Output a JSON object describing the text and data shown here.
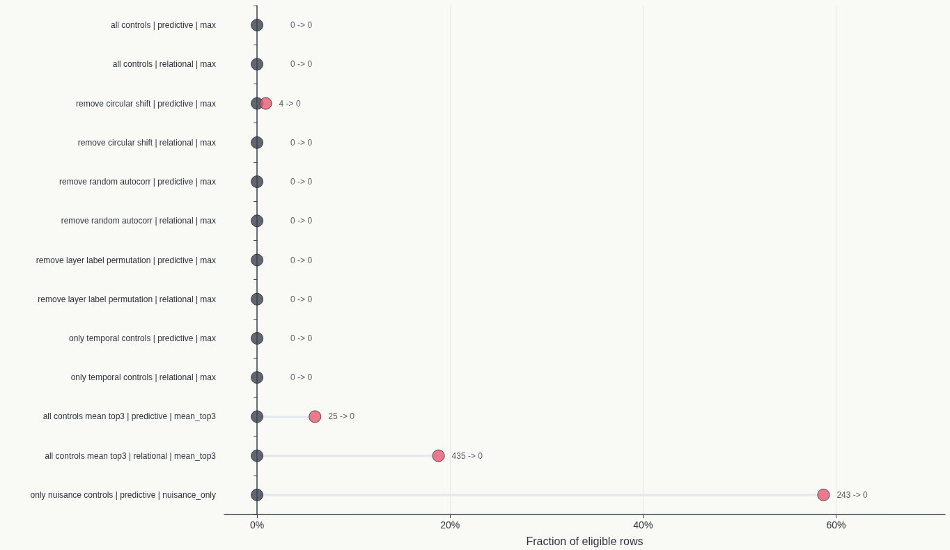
{
  "chart_data": {
    "type": "lollipop",
    "orientation": "horizontal",
    "xlabel": "Fraction of eligible rows",
    "categories": [
      "all controls | predictive | max",
      "all controls | relational | max",
      "remove circular shift | predictive | max",
      "remove circular shift | relational | max",
      "remove random autocorr | predictive | max",
      "remove random autocorr | relational | max",
      "remove layer label permutation | predictive | max",
      "remove layer label permutation | relational | max",
      "only temporal controls | predictive | max",
      "only temporal controls | relational | max",
      "all controls mean top3 | predictive | mean_top3",
      "all controls mean top3 | relational | mean_top3",
      "only nuisance controls | predictive | nuisance_only"
    ],
    "series": [
      {
        "color": "#e85a72",
        "values": [
          null,
          null,
          0.9,
          null,
          null,
          null,
          null,
          null,
          null,
          null,
          6.0,
          18.8,
          58.7
        ],
        "value_labels": [
          "0 -> 0",
          "0 -> 0",
          "4 -> 0",
          "0 -> 0",
          "0 -> 0",
          "0 -> 0",
          "0 -> 0",
          "0 -> 0",
          "0 -> 0",
          "0 -> 0",
          "25 -> 0",
          "435 -> 0",
          "243 -> 0"
        ]
      },
      {
        "type": "scatter",
        "color": "#3b414d",
        "values": [
          0,
          0,
          0,
          0,
          0,
          0,
          0,
          0,
          0,
          0,
          0,
          0,
          0
        ]
      }
    ],
    "xlim": [
      -3.4,
      71.3
    ],
    "xticks": [
      {
        "value": 0,
        "label": "0%"
      },
      {
        "value": 20,
        "label": "20%"
      },
      {
        "value": 40,
        "label": "40%"
      },
      {
        "value": 60,
        "label": "60%"
      }
    ],
    "grid": "x",
    "marker": "circle"
  }
}
